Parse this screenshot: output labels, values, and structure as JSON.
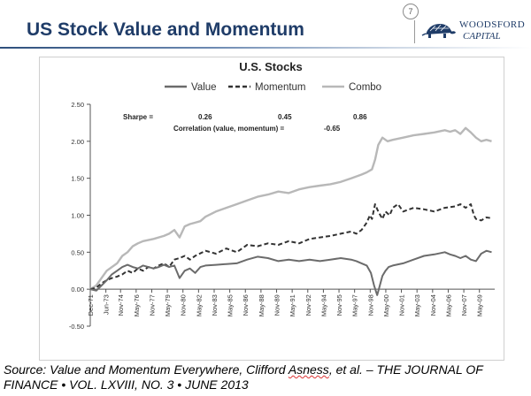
{
  "slide": {
    "title": "US Stock Value and Momentum",
    "page_number": "7",
    "brand_line1": "WOODSFORD",
    "brand_line2": "CAPITAL",
    "logo_icon": "tortoise-logo-icon",
    "accent_color": "#1f3c68"
  },
  "source": {
    "part1": "Source: Value and Momentum Everywhere, Clifford ",
    "author": "Asness",
    "part2": ", et al. – THE JOURNAL OF FINANCE • VOL. LXVIII, NO. 3 • JUNE 2013"
  },
  "chart_data": {
    "type": "line",
    "title": "U.S. Stocks",
    "xlabel": "",
    "ylabel": "",
    "ylim": [
      -0.5,
      2.5
    ],
    "yticks": [
      -0.5,
      0,
      0.5,
      1,
      1.5,
      2,
      2.5
    ],
    "ytick_labels": [
      "-0.50",
      "0.00",
      "0.50",
      "1.00",
      "1.50",
      "2.00",
      "2.50"
    ],
    "xlim": [
      1971.92,
      2010.8
    ],
    "xticks": [
      {
        "label": "Dec-71",
        "t": 1971.92
      },
      {
        "label": "Jun-73",
        "t": 1973.42
      },
      {
        "label": "Nov-74",
        "t": 1974.83
      },
      {
        "label": "May-76",
        "t": 1976.33
      },
      {
        "label": "Nov-77",
        "t": 1977.83
      },
      {
        "label": "May-79",
        "t": 1979.33
      },
      {
        "label": "Nov-80",
        "t": 1980.83
      },
      {
        "label": "May-82",
        "t": 1982.33
      },
      {
        "label": "Nov-83",
        "t": 1983.83
      },
      {
        "label": "May-85",
        "t": 1985.33
      },
      {
        "label": "Nov-86",
        "t": 1986.83
      },
      {
        "label": "May-88",
        "t": 1988.33
      },
      {
        "label": "Nov-89",
        "t": 1989.83
      },
      {
        "label": "May-91",
        "t": 1991.33
      },
      {
        "label": "Nov-92",
        "t": 1992.83
      },
      {
        "label": "May-94",
        "t": 1994.33
      },
      {
        "label": "Nov-95",
        "t": 1995.83
      },
      {
        "label": "May-97",
        "t": 1997.33
      },
      {
        "label": "Nov-98",
        "t": 1998.83
      },
      {
        "label": "May-00",
        "t": 2000.33
      },
      {
        "label": "Nov-01",
        "t": 2001.83
      },
      {
        "label": "May-03",
        "t": 2003.33
      },
      {
        "label": "Nov-04",
        "t": 2004.83
      },
      {
        "label": "May-06",
        "t": 2006.33
      },
      {
        "label": "Nov-07",
        "t": 2007.83
      },
      {
        "label": "May-09",
        "t": 2009.33
      }
    ],
    "grid": false,
    "legend": "top-center",
    "annotations": {
      "sharpe_label": "Sharpe =",
      "sharpe_value": "0.26",
      "sharpe_momentum": "0.45",
      "sharpe_combo": "0.86",
      "correlation": "Correlation (value, momentum) =",
      "correlation_value": "-0.65"
    },
    "series": [
      {
        "name": "Value",
        "style": "solid",
        "color": "#6b6b6b",
        "x": [
          1971.92,
          1972.5,
          1973.0,
          1973.5,
          1974.0,
          1974.5,
          1975.0,
          1975.5,
          1976.0,
          1976.5,
          1977.0,
          1977.5,
          1978.0,
          1978.5,
          1979.0,
          1979.5,
          1980.0,
          1980.5,
          1981.0,
          1981.5,
          1982.0,
          1982.5,
          1983.0,
          1984.0,
          1985.0,
          1986.0,
          1987.0,
          1988.0,
          1989.0,
          1990.0,
          1991.0,
          1992.0,
          1993.0,
          1994.0,
          1995.0,
          1996.0,
          1997.0,
          1997.5,
          1998.0,
          1998.5,
          1998.9,
          1999.2,
          1999.5,
          1999.7,
          2000.0,
          2000.3,
          2000.6,
          2001.0,
          2002.0,
          2003.0,
          2004.0,
          2005.0,
          2006.0,
          2006.5,
          2007.0,
          2007.5,
          2008.0,
          2008.5,
          2009.0,
          2009.5,
          2010.0,
          2010.5
        ],
        "values": [
          0.0,
          -0.02,
          0.05,
          0.12,
          0.2,
          0.25,
          0.3,
          0.33,
          0.3,
          0.28,
          0.32,
          0.3,
          0.28,
          0.3,
          0.33,
          0.3,
          0.32,
          0.15,
          0.25,
          0.28,
          0.22,
          0.3,
          0.32,
          0.33,
          0.34,
          0.35,
          0.4,
          0.44,
          0.42,
          0.38,
          0.4,
          0.38,
          0.4,
          0.38,
          0.4,
          0.42,
          0.4,
          0.38,
          0.35,
          0.32,
          0.22,
          0.05,
          -0.08,
          0.02,
          0.18,
          0.25,
          0.3,
          0.32,
          0.35,
          0.4,
          0.45,
          0.47,
          0.5,
          0.47,
          0.45,
          0.42,
          0.45,
          0.4,
          0.38,
          0.48,
          0.52,
          0.5
        ]
      },
      {
        "name": "Momentum",
        "style": "dashed",
        "color": "#333333",
        "x": [
          1971.92,
          1972.5,
          1973.0,
          1973.5,
          1974.0,
          1974.5,
          1975.0,
          1975.5,
          1976.0,
          1976.5,
          1977.0,
          1977.5,
          1978.0,
          1978.5,
          1979.0,
          1979.5,
          1980.0,
          1980.5,
          1981.0,
          1981.5,
          1982.0,
          1983.0,
          1984.0,
          1985.0,
          1986.0,
          1987.0,
          1988.0,
          1989.0,
          1990.0,
          1991.0,
          1992.0,
          1993.0,
          1994.0,
          1995.0,
          1996.0,
          1997.0,
          1997.5,
          1998.0,
          1998.5,
          1998.8,
          1999.0,
          1999.3,
          1999.6,
          2000.0,
          2000.3,
          2000.7,
          2001.0,
          2001.5,
          2002.0,
          2003.0,
          2004.0,
          2005.0,
          2006.0,
          2007.0,
          2007.5,
          2008.0,
          2008.5,
          2008.8,
          2009.0,
          2009.5,
          2010.0,
          2010.5
        ],
        "values": [
          0.0,
          0.02,
          0.08,
          0.12,
          0.15,
          0.17,
          0.2,
          0.25,
          0.22,
          0.28,
          0.25,
          0.3,
          0.28,
          0.32,
          0.35,
          0.3,
          0.4,
          0.42,
          0.45,
          0.4,
          0.45,
          0.52,
          0.48,
          0.55,
          0.5,
          0.6,
          0.58,
          0.62,
          0.6,
          0.65,
          0.62,
          0.68,
          0.7,
          0.72,
          0.75,
          0.78,
          0.75,
          0.8,
          0.9,
          1.0,
          0.95,
          1.15,
          1.05,
          0.95,
          1.05,
          1.0,
          1.1,
          1.15,
          1.05,
          1.1,
          1.08,
          1.05,
          1.1,
          1.12,
          1.15,
          1.1,
          1.15,
          1.0,
          0.95,
          0.93,
          0.97,
          0.96
        ]
      },
      {
        "name": "Combo",
        "style": "solid",
        "color": "#b8b8b8",
        "x": [
          1971.92,
          1972.5,
          1973.0,
          1973.5,
          1974.0,
          1974.5,
          1975.0,
          1975.5,
          1976.0,
          1976.5,
          1977.0,
          1978.0,
          1979.0,
          1979.5,
          1980.0,
          1980.5,
          1981.0,
          1981.5,
          1982.0,
          1982.5,
          1983.0,
          1984.0,
          1985.0,
          1986.0,
          1987.0,
          1988.0,
          1989.0,
          1990.0,
          1991.0,
          1992.0,
          1993.0,
          1994.0,
          1995.0,
          1996.0,
          1997.0,
          1998.0,
          1998.5,
          1999.0,
          1999.3,
          1999.6,
          2000.0,
          2000.5,
          2001.0,
          2002.0,
          2003.0,
          2004.0,
          2005.0,
          2006.0,
          2006.5,
          2007.0,
          2007.5,
          2008.0,
          2008.5,
          2009.0,
          2009.5,
          2010.0,
          2010.5
        ],
        "values": [
          0.0,
          0.05,
          0.15,
          0.25,
          0.3,
          0.35,
          0.45,
          0.5,
          0.58,
          0.62,
          0.65,
          0.68,
          0.72,
          0.75,
          0.8,
          0.7,
          0.85,
          0.88,
          0.9,
          0.92,
          0.98,
          1.05,
          1.1,
          1.15,
          1.2,
          1.25,
          1.28,
          1.32,
          1.3,
          1.35,
          1.38,
          1.4,
          1.42,
          1.45,
          1.5,
          1.55,
          1.58,
          1.62,
          1.75,
          1.95,
          2.05,
          2.0,
          2.02,
          2.05,
          2.08,
          2.1,
          2.12,
          2.15,
          2.13,
          2.15,
          2.1,
          2.18,
          2.12,
          2.05,
          2.0,
          2.02,
          2.0
        ]
      }
    ]
  }
}
